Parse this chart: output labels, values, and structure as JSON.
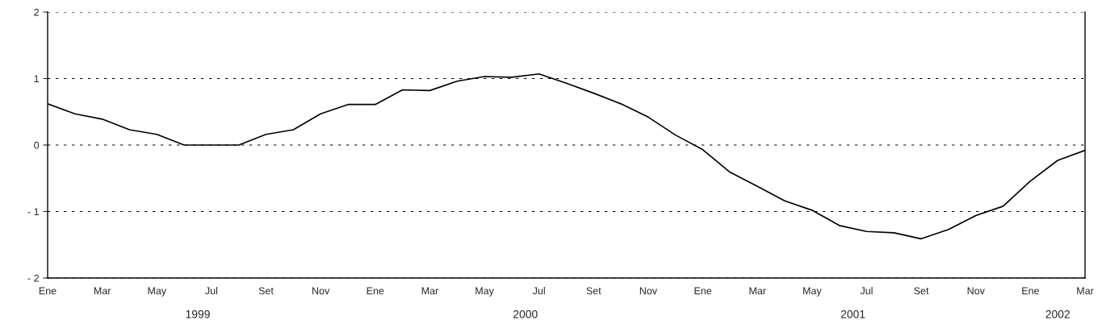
{
  "chart_data": {
    "type": "line",
    "categories": [
      "Ene",
      null,
      "Mar",
      null,
      "May",
      null,
      "Jul",
      null,
      "Set",
      null,
      "Nov",
      null,
      "Ene",
      null,
      "Mar",
      null,
      "May",
      null,
      "Jul",
      null,
      "Set",
      null,
      "Nov",
      null,
      "Ene",
      null,
      "Mar",
      null,
      "May",
      null,
      "Jul",
      null,
      "Set",
      null,
      "Nov",
      null,
      "Ene",
      null,
      "Mar"
    ],
    "series": [
      {
        "color": "#000000",
        "values": [
          0.62,
          0.47,
          0.39,
          0.23,
          0.16,
          0,
          0,
          0,
          0.16,
          0.23,
          0.47,
          0.61,
          0.61,
          0.83,
          0.82,
          0.96,
          1.03,
          1.02,
          1.07,
          0.93,
          0.78,
          0.62,
          0.42,
          0.15,
          -0.07,
          -0.41,
          -0.62,
          -0.84,
          -0.98,
          -1.21,
          -1.3,
          -1.32,
          -1.41,
          -1.27,
          -1.06,
          -0.92,
          -0.54,
          -0.23,
          -0.08
        ]
      }
    ],
    "ylim": [
      -2,
      2
    ],
    "yticks": [
      {
        "value": -2,
        "label": "- 2"
      },
      {
        "value": -1,
        "label": "- 1"
      },
      0,
      1,
      2
    ],
    "grid": "y",
    "legend": false,
    "marker": "none",
    "line_style": "solid",
    "annotations": [
      "1999",
      "2000",
      "2001",
      "2002"
    ]
  }
}
